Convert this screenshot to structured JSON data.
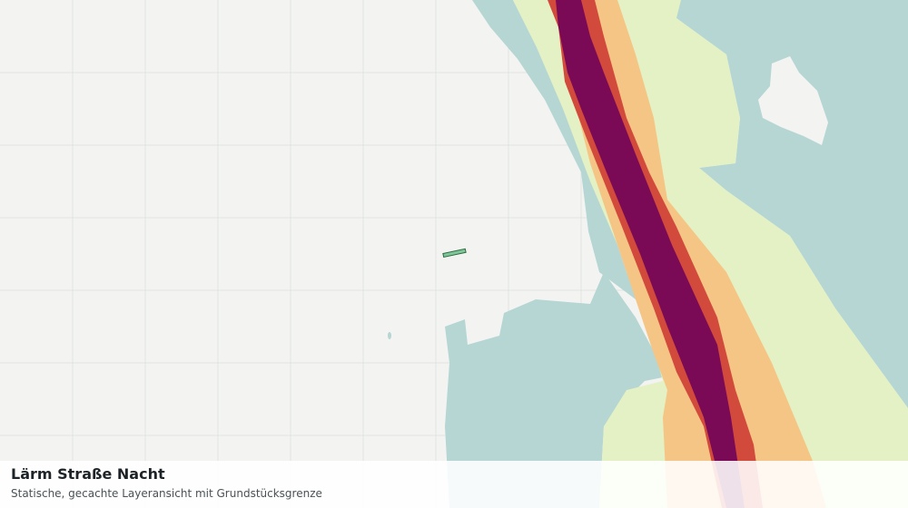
{
  "title": "Lärm Straße Nacht",
  "subtitle": "Statische, gecachte Layeransicht mit Grundstücksgrenze"
}
